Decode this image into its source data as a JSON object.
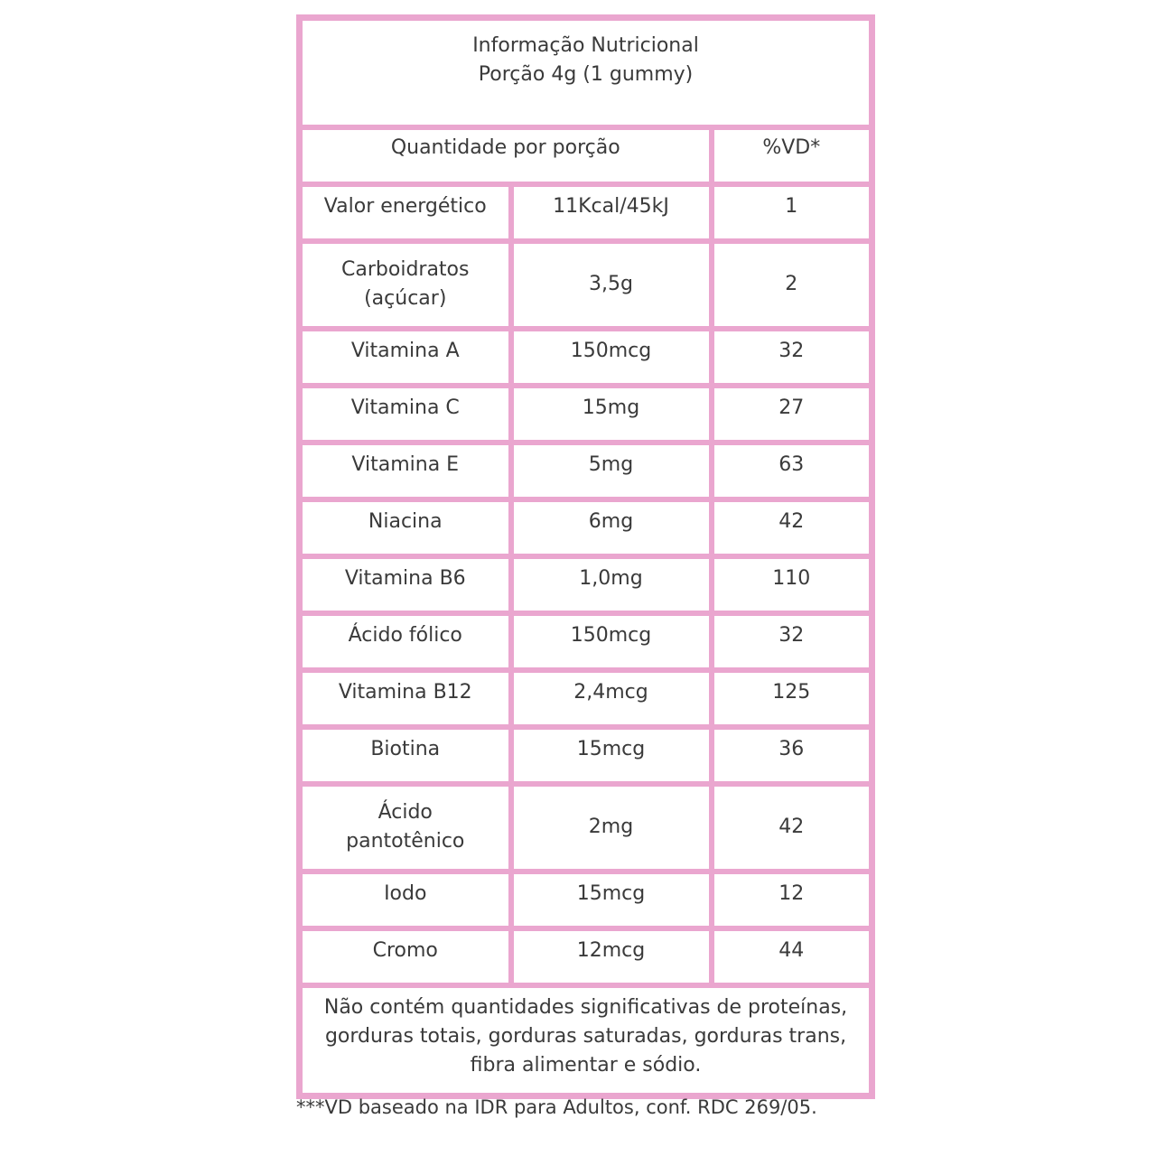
{
  "title": "Informação Nutricional",
  "portion": "Porção 4g (1 gummy)",
  "header": {
    "quantity": "Quantidade por porção",
    "vd": "%VD*"
  },
  "rows": [
    {
      "name": "Valor energético",
      "amount": "11Kcal/45kJ",
      "vd": "1"
    },
    {
      "name": "Carboidratos (açúcar)",
      "amount": "3,5g",
      "vd": "2"
    },
    {
      "name": "Vitamina A",
      "amount": "150mcg",
      "vd": "32"
    },
    {
      "name": "Vitamina C",
      "amount": "15mg",
      "vd": "27"
    },
    {
      "name": "Vitamina E",
      "amount": "5mg",
      "vd": "63"
    },
    {
      "name": "Niacina",
      "amount": "6mg",
      "vd": "42"
    },
    {
      "name": "Vitamina B6",
      "amount": "1,0mg",
      "vd": "110"
    },
    {
      "name": "Ácido fólico",
      "amount": "150mcg",
      "vd": "32"
    },
    {
      "name": "Vitamina B12",
      "amount": "2,4mcg",
      "vd": "125"
    },
    {
      "name": "Biotina",
      "amount": "15mcg",
      "vd": "36"
    },
    {
      "name": "Ácido pantotênico",
      "amount": "2mg",
      "vd": "42"
    },
    {
      "name": "Iodo",
      "amount": "15mcg",
      "vd": "12"
    },
    {
      "name": "Cromo",
      "amount": "12mcg",
      "vd": "44"
    }
  ],
  "footer": "Não contém quantidades significativas de proteínas, gorduras totais, gorduras saturadas, gorduras trans, fibra alimentar e sódio.",
  "note": "***VD baseado na IDR para Adultos, conf. RDC 269/05.",
  "colors": {
    "border": "#eaa6cf",
    "text": "#3a3a3a"
  }
}
